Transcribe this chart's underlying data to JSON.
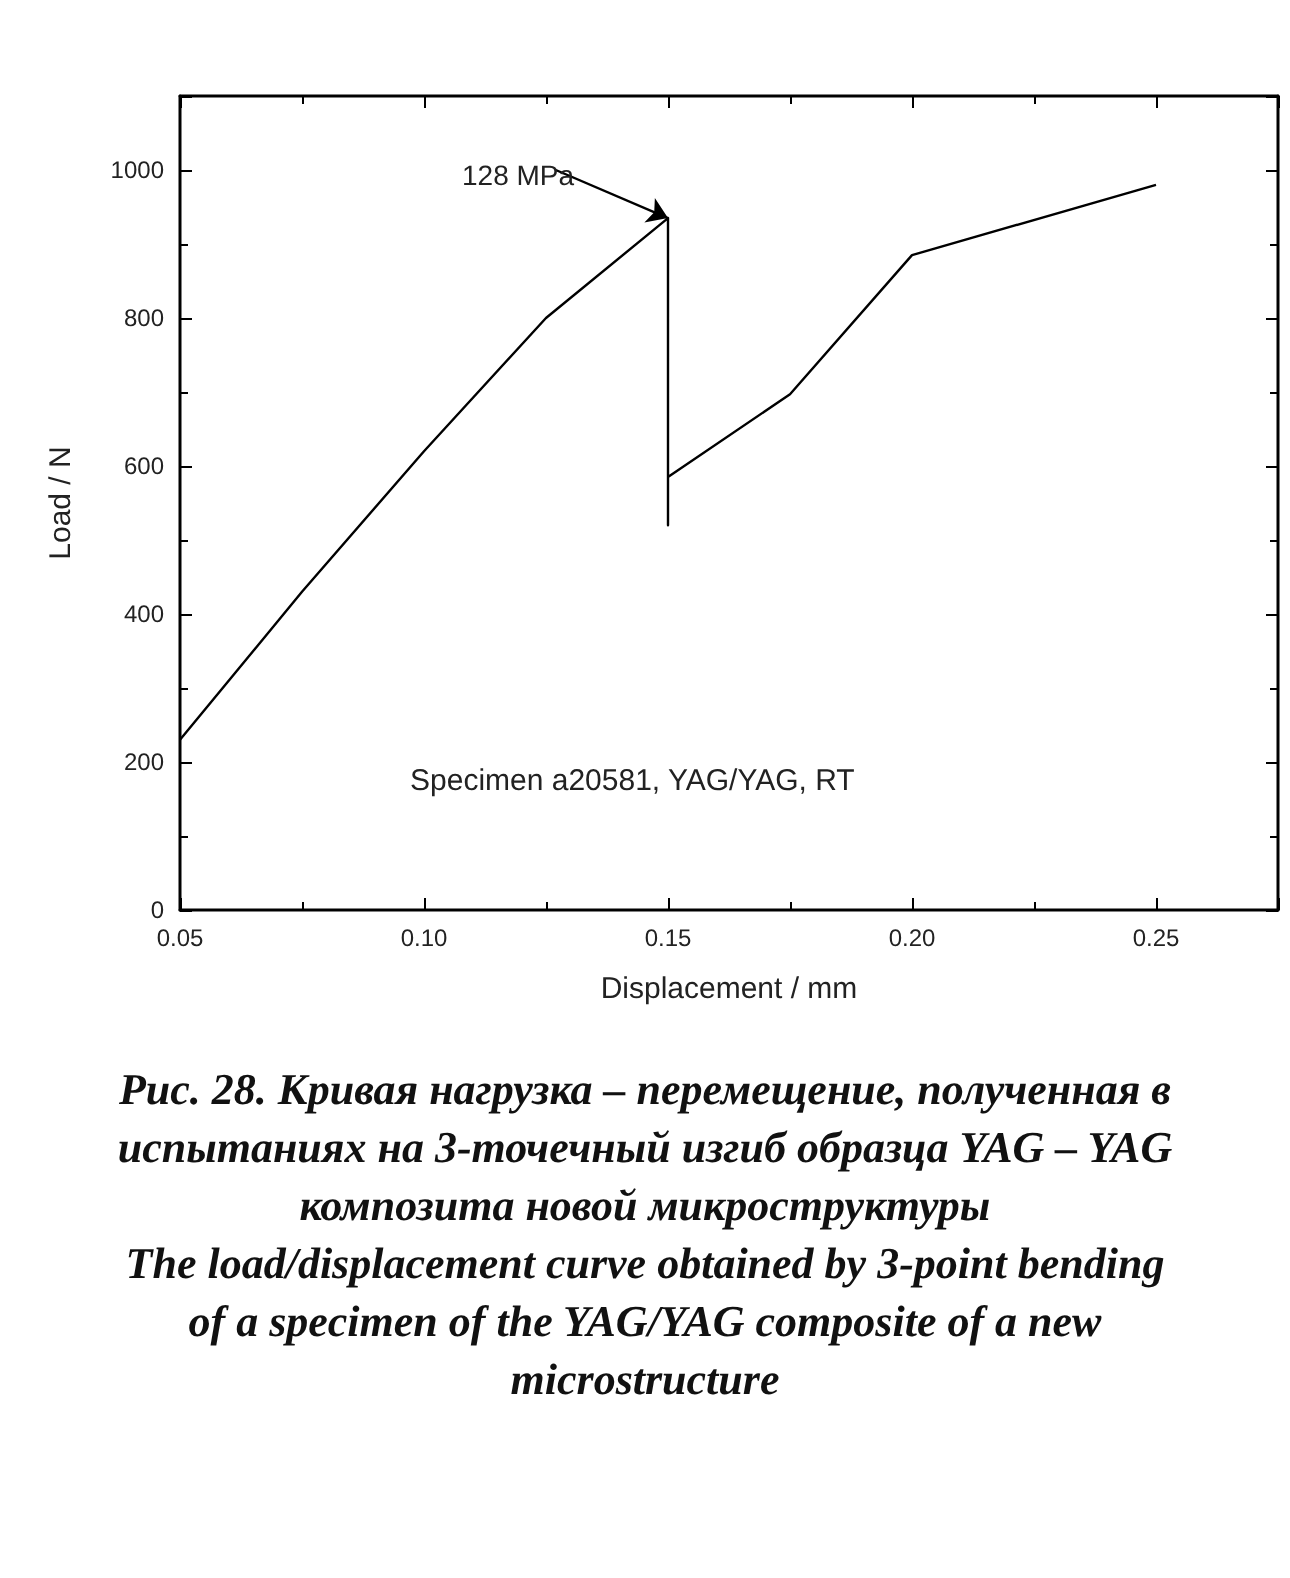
{
  "chart_data": {
    "type": "line",
    "xlabel": "Displacement / mm",
    "ylabel": "Load / N",
    "x": [
      0.05,
      0.075,
      0.1,
      0.125,
      0.15,
      0.15,
      0.15,
      0.175,
      0.2,
      0.25
    ],
    "series": [
      {
        "color": "#000000",
        "values": [
          230,
          430,
          620,
          800,
          935,
          520,
          585,
          697,
          885,
          980
        ]
      }
    ],
    "xlim": [
      0.05,
      0.275
    ],
    "ylim": [
      0,
      1100
    ],
    "xticks": [
      {
        "value": 0.05,
        "label": "0.05"
      },
      {
        "value": 0.1,
        "label": "0.10"
      },
      {
        "value": 0.15,
        "label": "0.15"
      },
      {
        "value": 0.2,
        "label": "0.20"
      },
      {
        "value": 0.25,
        "label": "0.25"
      }
    ],
    "yticks": [
      0,
      200,
      400,
      600,
      800,
      1000
    ],
    "grid": false,
    "marker": "none",
    "line_style": "solid",
    "annotations": [
      {
        "text": "128 MPa",
        "x": 0.15,
        "y": 935
      },
      "Specimen a20581, YAG/YAG, RT",
      "Рис. 28. Кривая нагрузка – перемещение, полученная в испытаниях на 3-точечный изгиб образца YAG – YAG композита новой микроструктуры",
      "The load/displacement curve obtained by 3-point bending of a specimen of the YAG/YAG composite of a new microstructure"
    ]
  }
}
